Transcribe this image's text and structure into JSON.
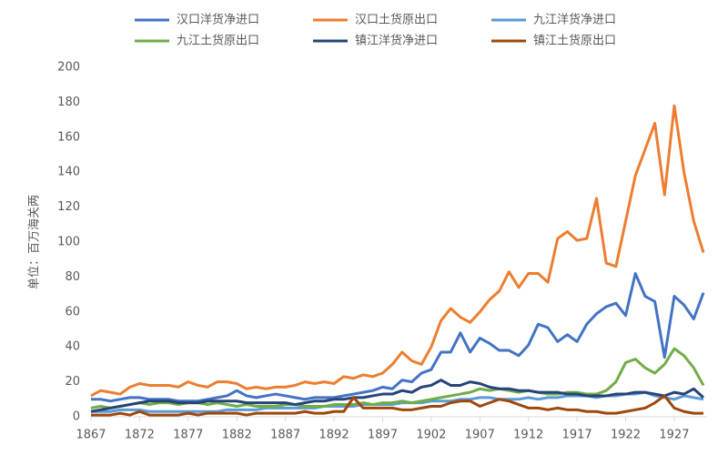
{
  "chart_data": {
    "type": "line",
    "y_label": "单位：百万海关两",
    "x": [
      1867,
      1868,
      1869,
      1870,
      1871,
      1872,
      1873,
      1874,
      1875,
      1876,
      1877,
      1878,
      1879,
      1880,
      1881,
      1882,
      1883,
      1884,
      1885,
      1886,
      1887,
      1888,
      1889,
      1890,
      1891,
      1892,
      1893,
      1894,
      1895,
      1896,
      1897,
      1898,
      1899,
      1900,
      1901,
      1902,
      1903,
      1904,
      1905,
      1906,
      1907,
      1908,
      1909,
      1910,
      1911,
      1912,
      1913,
      1914,
      1915,
      1916,
      1917,
      1918,
      1919,
      1920,
      1921,
      1922,
      1923,
      1924,
      1925,
      1926,
      1927,
      1928,
      1929,
      1930
    ],
    "xlim": [
      1867,
      1930
    ],
    "xticks": [
      1867,
      1872,
      1877,
      1882,
      1887,
      1892,
      1897,
      1902,
      1907,
      1912,
      1917,
      1922,
      1927
    ],
    "ylim": [
      0,
      200
    ],
    "yticks": [
      0,
      20,
      40,
      60,
      80,
      100,
      120,
      140,
      160,
      180,
      200
    ],
    "legend": "top",
    "series": [
      {
        "name": "汉口洋货净进口",
        "color": "#4472c4",
        "values": [
          10,
          10,
          9,
          10,
          11,
          11,
          10,
          10,
          10,
          9,
          9,
          9,
          10,
          11,
          12,
          15,
          12,
          11,
          12,
          13,
          12,
          11,
          10,
          11,
          11,
          11,
          12,
          13,
          14,
          15,
          17,
          16,
          21,
          20,
          25,
          27,
          37,
          37,
          48,
          37,
          45,
          42,
          38,
          38,
          35,
          41,
          53,
          51,
          43,
          47,
          43,
          53,
          59,
          63,
          65,
          58,
          82,
          69,
          66,
          34,
          69,
          64,
          56,
          71
        ]
      },
      {
        "name": "汉口土货原出口",
        "color": "#ed7d31",
        "values": [
          12,
          15,
          14,
          13,
          17,
          19,
          18,
          18,
          18,
          17,
          20,
          18,
          17,
          20,
          20,
          19,
          16,
          17,
          16,
          17,
          17,
          18,
          20,
          19,
          20,
          19,
          23,
          22,
          24,
          23,
          25,
          30,
          37,
          32,
          30,
          40,
          55,
          62,
          57,
          54,
          60,
          67,
          72,
          83,
          74,
          82,
          82,
          77,
          102,
          106,
          101,
          102,
          125,
          88,
          86,
          112,
          138,
          153,
          168,
          127,
          178,
          140,
          112,
          94
        ]
      },
      {
        "name": "九江洋货净进口",
        "color": "#5b9bd5",
        "values": [
          3,
          3,
          3,
          4,
          4,
          4,
          3,
          3,
          3,
          3,
          3,
          3,
          3,
          3,
          4,
          4,
          4,
          4,
          5,
          5,
          5,
          5,
          5,
          5,
          6,
          6,
          6,
          6,
          7,
          7,
          7,
          7,
          8,
          8,
          8,
          9,
          9,
          9,
          10,
          10,
          11,
          11,
          10,
          10,
          10,
          11,
          10,
          11,
          11,
          12,
          12,
          12,
          11,
          12,
          12,
          13,
          13,
          14,
          12,
          11,
          10,
          12,
          11,
          10
        ]
      },
      {
        "name": "九江土货原出口",
        "color": "#70ad47",
        "values": [
          5,
          6,
          5,
          6,
          7,
          8,
          7,
          8,
          8,
          7,
          8,
          8,
          7,
          8,
          7,
          6,
          7,
          6,
          6,
          6,
          7,
          7,
          6,
          6,
          6,
          7,
          7,
          7,
          8,
          7,
          8,
          8,
          9,
          8,
          9,
          10,
          11,
          12,
          13,
          14,
          16,
          15,
          16,
          15,
          14,
          15,
          14,
          13,
          13,
          14,
          14,
          13,
          13,
          15,
          20,
          31,
          33,
          28,
          25,
          30,
          39,
          35,
          28,
          18
        ]
      },
      {
        "name": "镇江洋货净进口",
        "color": "#264478",
        "values": [
          3,
          4,
          5,
          6,
          7,
          8,
          9,
          9,
          9,
          8,
          8,
          8,
          9,
          9,
          9,
          9,
          8,
          8,
          8,
          8,
          8,
          7,
          8,
          9,
          9,
          10,
          10,
          11,
          11,
          12,
          13,
          13,
          15,
          14,
          17,
          18,
          21,
          18,
          18,
          20,
          19,
          17,
          16,
          16,
          15,
          15,
          14,
          14,
          14,
          13,
          13,
          12,
          12,
          12,
          13,
          13,
          14,
          14,
          13,
          12,
          14,
          13,
          16,
          11
        ]
      },
      {
        "name": "镇江土货原出口",
        "color": "#9e480e",
        "values": [
          1,
          1,
          1,
          2,
          1,
          3,
          1,
          1,
          1,
          1,
          2,
          1,
          2,
          2,
          2,
          2,
          1,
          2,
          2,
          2,
          2,
          2,
          3,
          2,
          2,
          3,
          3,
          11,
          5,
          5,
          5,
          5,
          4,
          4,
          5,
          6,
          6,
          8,
          9,
          9,
          6,
          8,
          10,
          9,
          7,
          5,
          5,
          4,
          5,
          4,
          4,
          3,
          3,
          2,
          2,
          3,
          4,
          5,
          8,
          12,
          5,
          3,
          2,
          2
        ]
      }
    ]
  }
}
